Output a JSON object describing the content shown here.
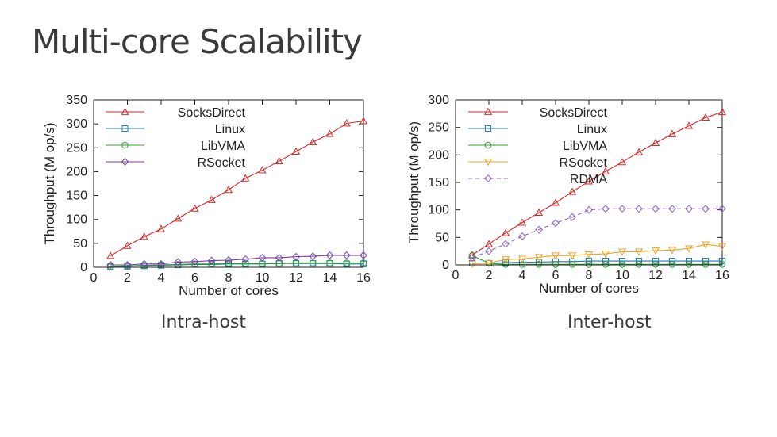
{
  "slide": {
    "title": "Multi-core Scalability",
    "left_caption": "Intra-host",
    "right_caption": "Inter-host"
  },
  "chart_data": [
    {
      "type": "line",
      "xlabel": "Number of cores",
      "ylabel": "Throughput (M op/s)",
      "xlim": [
        0,
        16
      ],
      "ylim": [
        0,
        350
      ],
      "xticks": [
        0,
        2,
        4,
        6,
        8,
        10,
        12,
        14,
        16
      ],
      "yticks": [
        0,
        50,
        100,
        150,
        200,
        250,
        300,
        350
      ],
      "grid": false,
      "legend_position": "top-left",
      "series": [
        {
          "name": "SocksDirect",
          "color": "#d62728",
          "marker": "triangle-up",
          "dash": false,
          "x": [
            1,
            2,
            3,
            4,
            5,
            6,
            7,
            8,
            9,
            10,
            11,
            12,
            13,
            14,
            15,
            16
          ],
          "y": [
            24,
            45,
            64,
            80,
            102,
            123,
            141,
            162,
            186,
            203,
            222,
            242,
            262,
            279,
            301,
            306
          ]
        },
        {
          "name": "Linux",
          "color": "#1f77b4",
          "marker": "square",
          "dash": false,
          "x": [
            1,
            2,
            3,
            4,
            5,
            6,
            7,
            8,
            9,
            10,
            11,
            12,
            13,
            14,
            15,
            16
          ],
          "y": [
            1,
            2,
            3,
            4,
            5,
            6,
            6,
            7,
            7,
            7,
            8,
            8,
            8,
            8,
            7,
            7
          ]
        },
        {
          "name": "LibVMA",
          "color": "#2ca02c",
          "marker": "circle",
          "dash": false,
          "x": [
            1,
            2,
            3,
            4,
            5,
            6,
            7,
            8,
            9,
            10,
            11,
            12,
            13,
            14,
            15,
            16
          ],
          "y": [
            2,
            3,
            4,
            5,
            6,
            7,
            7,
            8,
            8,
            8,
            8,
            9,
            9,
            9,
            9,
            9
          ]
        },
        {
          "name": "RSocket",
          "color": "#7b3fb0",
          "marker": "diamond",
          "dash": false,
          "x": [
            1,
            2,
            3,
            4,
            5,
            6,
            7,
            8,
            9,
            10,
            11,
            12,
            13,
            14,
            15,
            16
          ],
          "y": [
            5,
            5,
            7,
            7,
            11,
            12,
            14,
            15,
            17,
            20,
            20,
            22,
            23,
            25,
            25,
            25
          ]
        }
      ]
    },
    {
      "type": "line",
      "xlabel": "Number of cores",
      "ylabel": "Throughput (M op/s)",
      "xlim": [
        0,
        16
      ],
      "ylim": [
        0,
        300
      ],
      "xticks": [
        0,
        2,
        4,
        6,
        8,
        10,
        12,
        14,
        16
      ],
      "yticks": [
        0,
        50,
        100,
        150,
        200,
        250,
        300
      ],
      "grid": false,
      "legend_position": "top-left",
      "series": [
        {
          "name": "SocksDirect",
          "color": "#d62728",
          "marker": "triangle-up",
          "dash": false,
          "x": [
            1,
            2,
            3,
            4,
            5,
            6,
            7,
            8,
            9,
            10,
            11,
            12,
            13,
            14,
            15,
            16
          ],
          "y": [
            18,
            38,
            58,
            77,
            95,
            113,
            133,
            152,
            170,
            187,
            205,
            222,
            238,
            253,
            268,
            278
          ]
        },
        {
          "name": "Linux",
          "color": "#1f77b4",
          "marker": "square",
          "dash": false,
          "x": [
            1,
            2,
            3,
            4,
            5,
            6,
            7,
            8,
            9,
            10,
            11,
            12,
            13,
            14,
            15,
            16
          ],
          "y": [
            3,
            3,
            4,
            5,
            5,
            6,
            6,
            7,
            7,
            7,
            7,
            7,
            7,
            7,
            7,
            7
          ]
        },
        {
          "name": "LibVMA",
          "color": "#2ca02c",
          "marker": "circle",
          "dash": false,
          "x": [
            1,
            2,
            3,
            4,
            5,
            6,
            7,
            8,
            9,
            10,
            11,
            12,
            13,
            14,
            15,
            16
          ],
          "y": [
            17,
            3,
            1,
            1,
            1,
            1,
            1,
            1,
            1,
            1,
            1,
            1,
            1,
            1,
            1,
            1
          ]
        },
        {
          "name": "RSocket",
          "color": "#f0a020",
          "marker": "triangle-down",
          "dash": false,
          "x": [
            1,
            2,
            3,
            4,
            5,
            6,
            7,
            8,
            9,
            10,
            11,
            12,
            13,
            14,
            15,
            16
          ],
          "y": [
            2,
            3,
            10,
            11,
            14,
            17,
            17,
            19,
            20,
            24,
            24,
            26,
            27,
            30,
            37,
            34
          ]
        },
        {
          "name": "RDMA",
          "color": "#8b5fc7",
          "marker": "diamond",
          "dash": true,
          "x": [
            1,
            2,
            3,
            4,
            5,
            6,
            7,
            8,
            9,
            10,
            11,
            12,
            13,
            14,
            15,
            16
          ],
          "y": [
            13,
            25,
            38,
            52,
            64,
            76,
            87,
            100,
            102,
            102,
            102,
            102,
            102,
            102,
            102,
            102
          ]
        }
      ]
    }
  ]
}
